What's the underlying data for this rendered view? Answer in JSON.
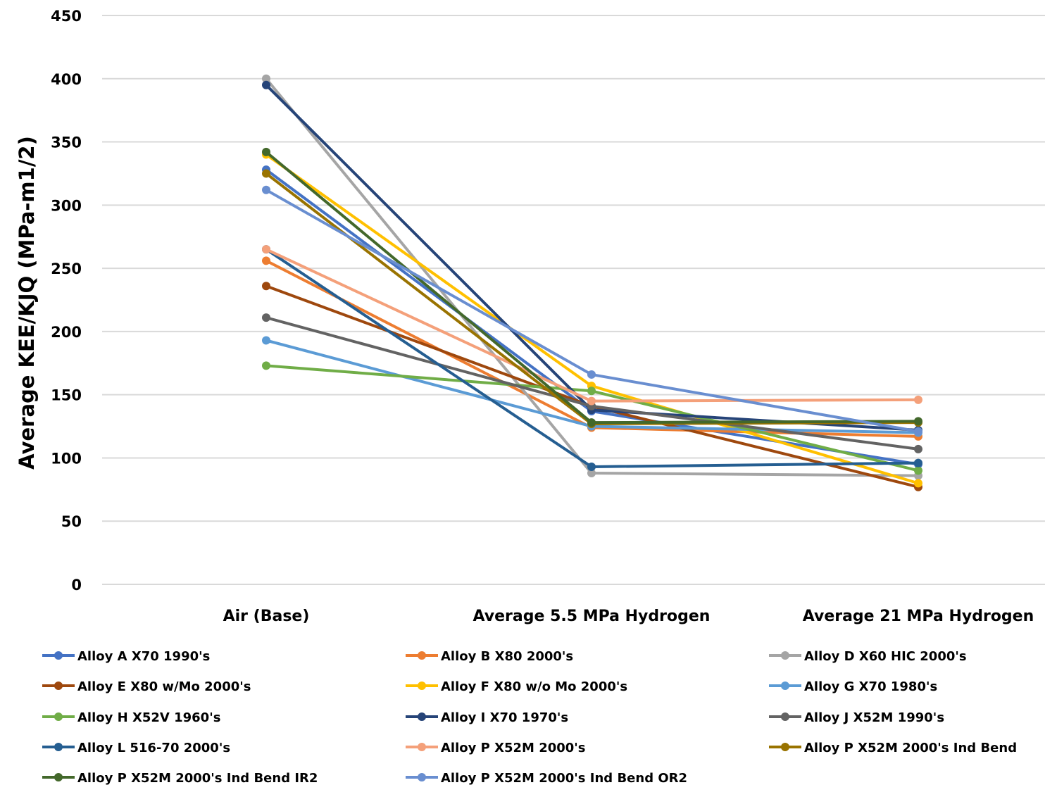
{
  "chart_data": {
    "type": "line",
    "title": "",
    "xlabel": "",
    "ylabel": "Average KEE/KJQ (MPa-m1/2)",
    "ylim": [
      0,
      450
    ],
    "ytick_step": 50,
    "grid": "horizontal",
    "legend_position": "bottom",
    "categories": [
      "Air (Base)",
      "Average 5.5 MPa Hydrogen",
      "Average 21 MPa Hydrogen"
    ],
    "series": [
      {
        "name": "Alloy A X70 1990's",
        "color": "#4472c4",
        "values": [
          328,
          137,
          95
        ]
      },
      {
        "name": "Alloy B X80 2000's",
        "color": "#ed7d31",
        "values": [
          256,
          124,
          117
        ]
      },
      {
        "name": "Alloy D X60 HIC 2000's",
        "color": "#a5a5a5",
        "values": [
          400,
          88,
          86
        ]
      },
      {
        "name": "Alloy E X80 w/Mo 2000's",
        "color": "#9e480e",
        "values": [
          236,
          141,
          77
        ]
      },
      {
        "name": "Alloy F X80 w/o Mo 2000's",
        "color": "#ffc000",
        "values": [
          340,
          157,
          80
        ]
      },
      {
        "name": "Alloy G X70 1980's",
        "color": "#5b9bd5",
        "values": [
          193,
          125,
          120
        ]
      },
      {
        "name": "Alloy H X52V 1960's",
        "color": "#70ad47",
        "values": [
          173,
          153,
          90
        ]
      },
      {
        "name": "Alloy I X70 1970's",
        "color": "#264478",
        "values": [
          395,
          138,
          122
        ]
      },
      {
        "name": "Alloy J X52M 1990's",
        "color": "#636363",
        "values": [
          211,
          141,
          107
        ]
      },
      {
        "name": "Alloy L 516-70 2000's",
        "color": "#255e91",
        "values": [
          265,
          93,
          96
        ]
      },
      {
        "name": "Alloy P X52M 2000's",
        "color": "#f4a07a",
        "values": [
          265,
          145,
          146
        ]
      },
      {
        "name": "Alloy P X52M 2000's Ind Bend",
        "color": "#997300",
        "values": [
          325,
          127,
          128
        ]
      },
      {
        "name": "Alloy P X52M 2000's Ind Bend IR2",
        "color": "#43682b",
        "values": [
          342,
          128,
          129
        ]
      },
      {
        "name": "Alloy P X52M 2000's Ind Bend OR2",
        "color": "#698ed0",
        "values": [
          312,
          166,
          121
        ]
      }
    ]
  }
}
